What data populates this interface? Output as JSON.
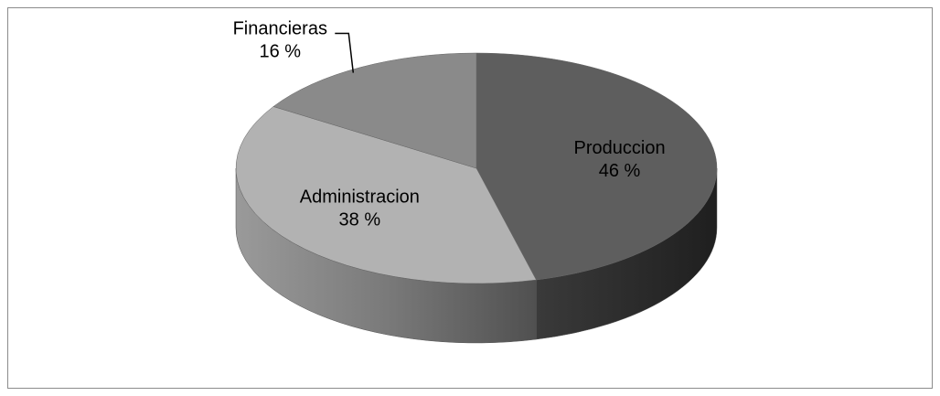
{
  "chart_data": {
    "type": "pie3d",
    "categories": [
      "Produccion",
      "Administracion",
      "Financieras"
    ],
    "values": [
      46,
      38,
      16
    ],
    "value_labels": [
      "46 %",
      "38 %",
      "16 %"
    ],
    "colors": [
      "#5e5e5e",
      "#b2b2b2",
      "#8a8a8a"
    ]
  }
}
